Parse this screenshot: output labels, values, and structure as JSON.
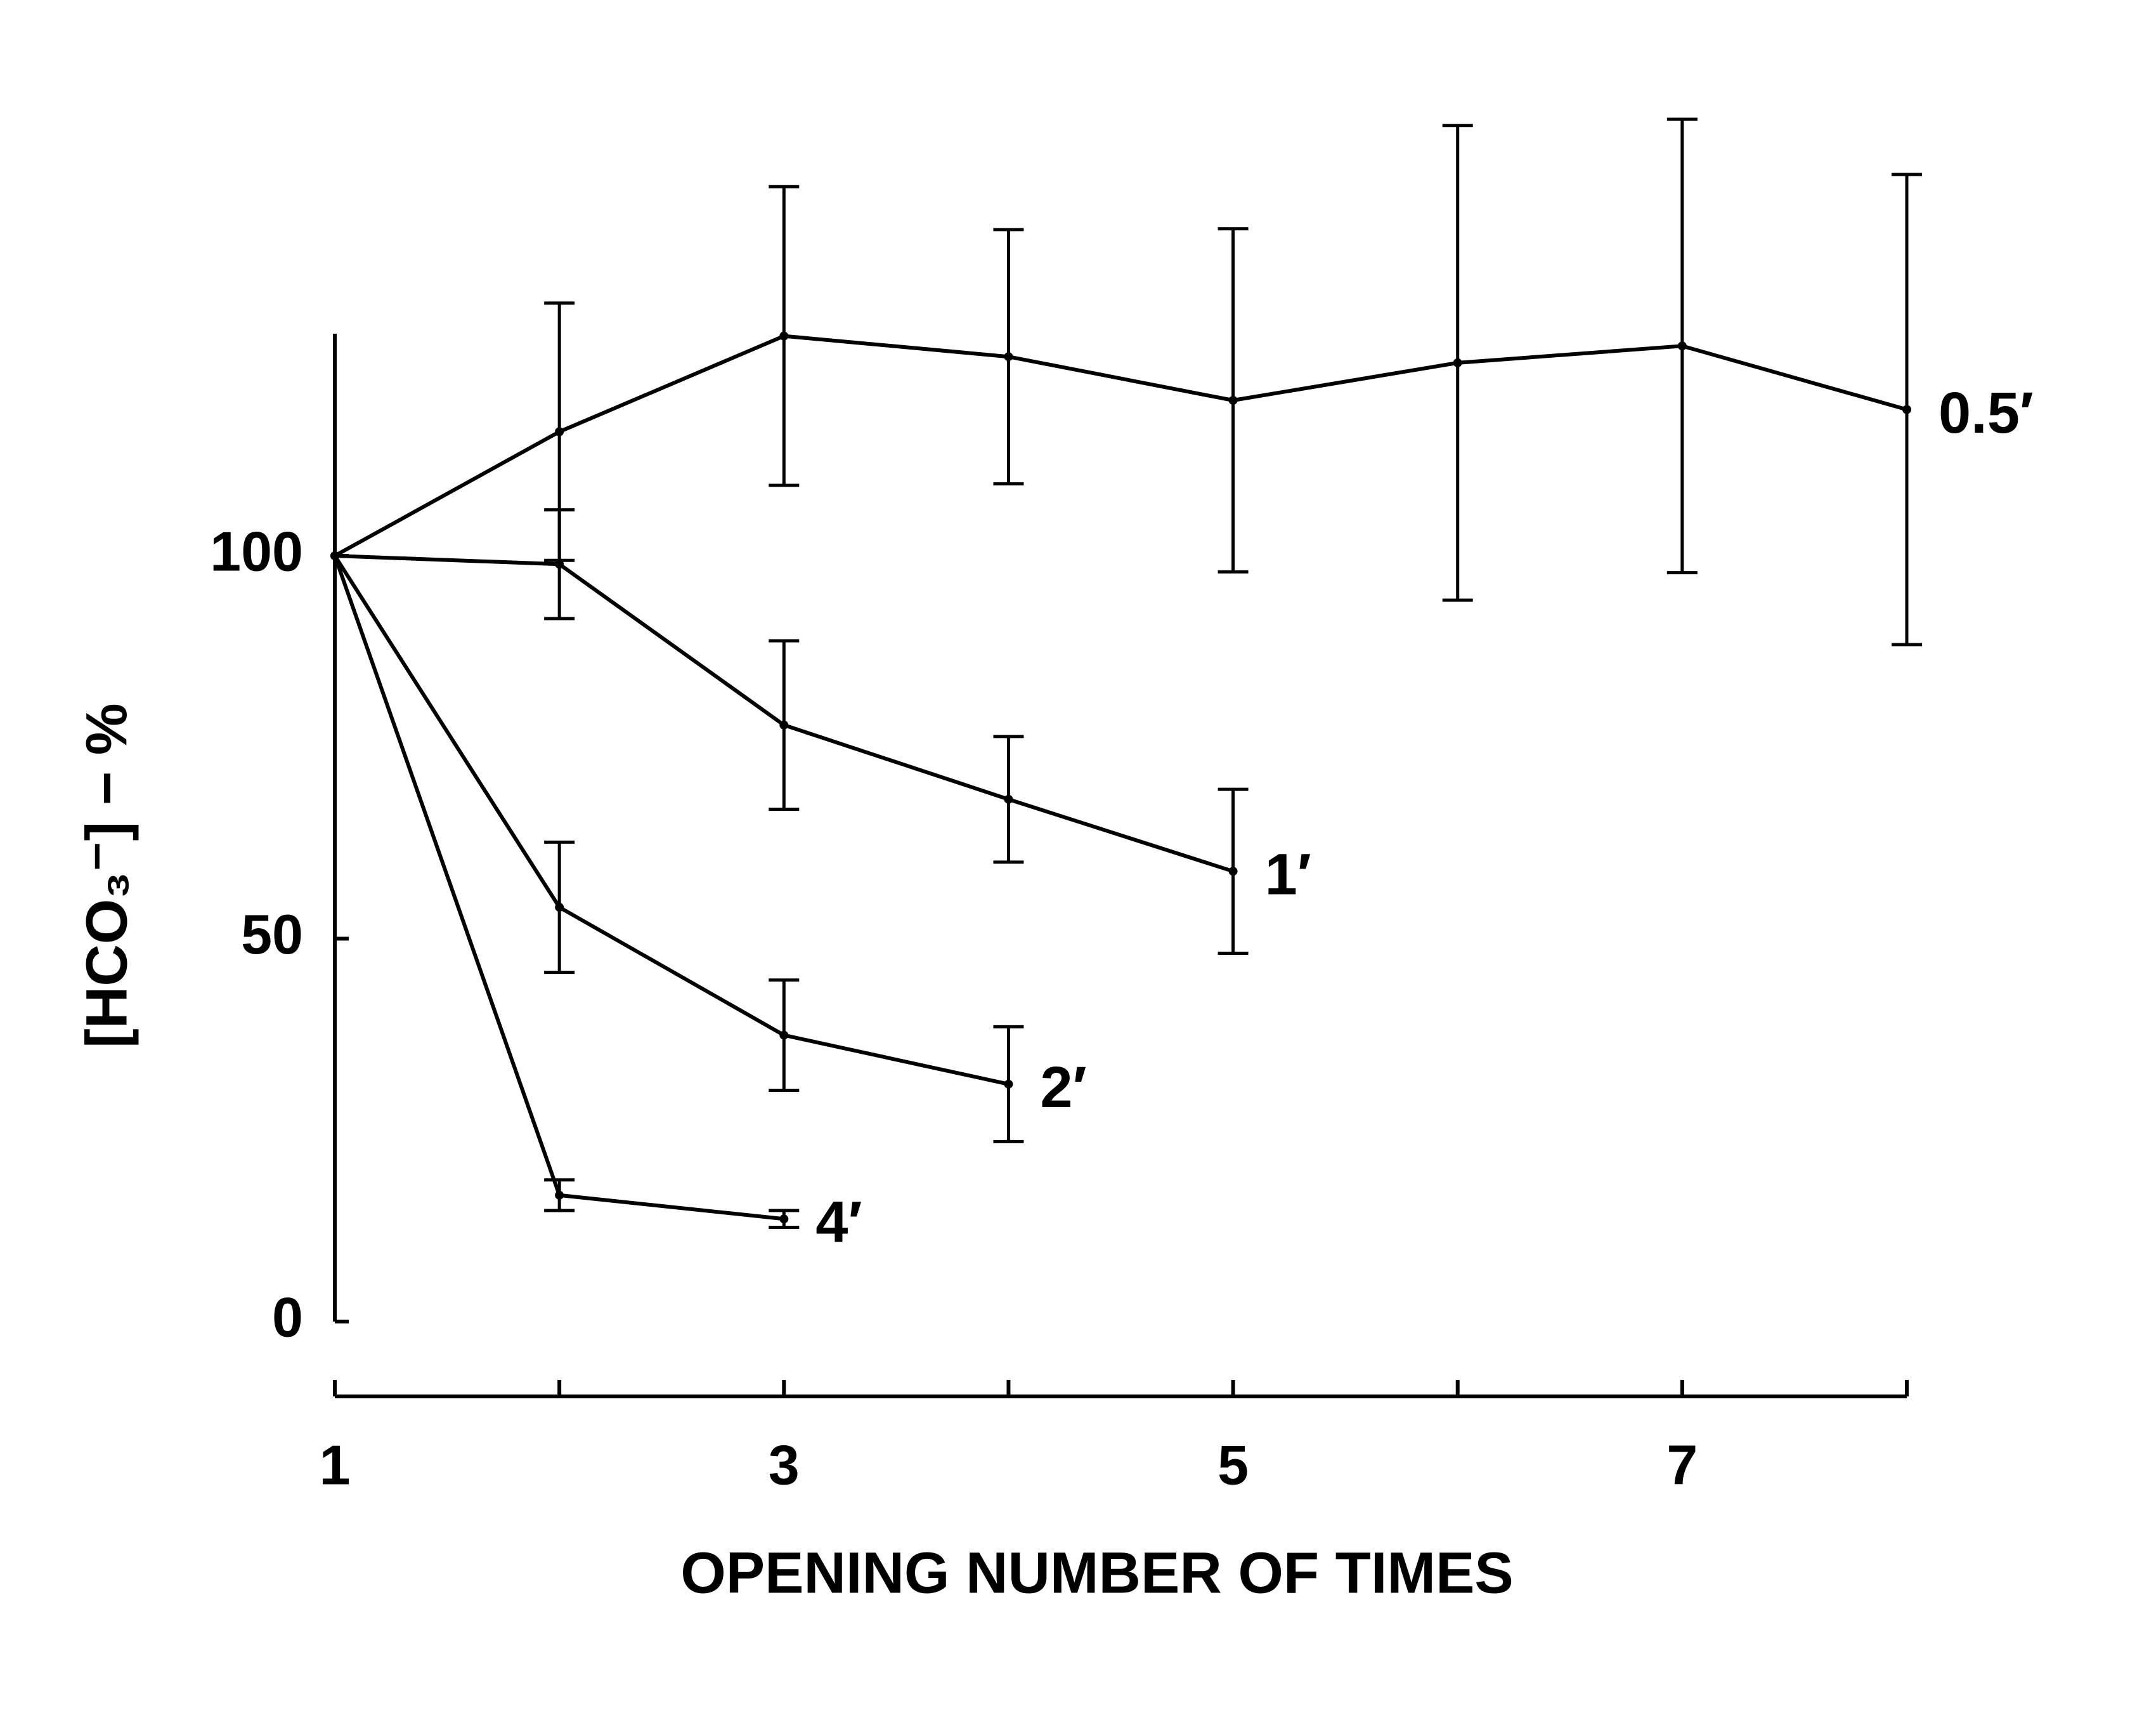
{
  "chart_data": {
    "type": "line",
    "x_label": "OPENING NUMBER OF TIMES",
    "y_label": "[HCO₃⁻] − %",
    "x": [
      1,
      2,
      3,
      4,
      5,
      6,
      7,
      8
    ],
    "xlim": [
      1,
      8
    ],
    "xticks": [
      1,
      3,
      5,
      7
    ],
    "xminorticks": [
      2,
      4,
      6,
      8
    ],
    "ylim": [
      0,
      129
    ],
    "yticks": [
      0,
      50,
      100
    ],
    "color": "#000000",
    "series": [
      {
        "name": "0.5′",
        "values": [
          100,
          116.2,
          128.7,
          126,
          120.3,
          125.2,
          127.4,
          119.1
        ],
        "errors": [
          null,
          16.8,
          19.5,
          16.6,
          22.4,
          31,
          29.6,
          30.7
        ]
      },
      {
        "name": "1′",
        "values": [
          100,
          98.9,
          77.9,
          68.2,
          58.8,
          null,
          null,
          null
        ],
        "errors": [
          null,
          7.1,
          11,
          8.2,
          10.7,
          null,
          null,
          null
        ]
      },
      {
        "name": "2′",
        "values": [
          100,
          54.1,
          37.4,
          31,
          null,
          null,
          null,
          null
        ],
        "errors": [
          null,
          8.5,
          7.2,
          7.5,
          null,
          null,
          null,
          null
        ]
      },
      {
        "name": "4′",
        "values": [
          100,
          16.5,
          13.4,
          null,
          null,
          null,
          null,
          null
        ],
        "errors": [
          null,
          2,
          1.1,
          null,
          null,
          null,
          null,
          null
        ]
      }
    ]
  }
}
